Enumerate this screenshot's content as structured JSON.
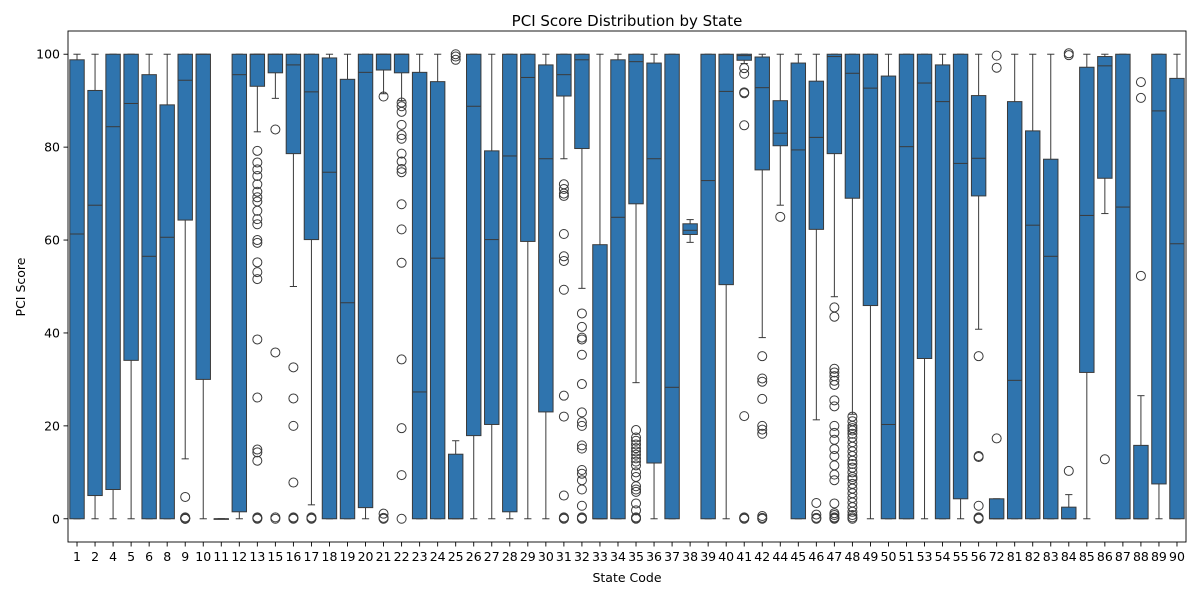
{
  "chart_data": {
    "type": "box",
    "title": "PCI Score Distribution by State",
    "xlabel": "State Code",
    "ylabel": "PCI Score",
    "ylim": [
      -5,
      105
    ],
    "yticks": [
      0,
      20,
      40,
      60,
      80,
      100
    ],
    "grid": false,
    "color": "#2f74ae",
    "categories": [
      "1",
      "2",
      "4",
      "5",
      "6",
      "8",
      "9",
      "10",
      "11",
      "12",
      "13",
      "15",
      "16",
      "17",
      "18",
      "19",
      "20",
      "21",
      "22",
      "23",
      "24",
      "25",
      "26",
      "27",
      "28",
      "29",
      "30",
      "31",
      "32",
      "33",
      "34",
      "35",
      "36",
      "37",
      "38",
      "39",
      "40",
      "41",
      "42",
      "44",
      "45",
      "46",
      "47",
      "48",
      "49",
      "50",
      "51",
      "53",
      "54",
      "55",
      "56",
      "72",
      "81",
      "82",
      "83",
      "84",
      "85",
      "86",
      "87",
      "88",
      "89",
      "90"
    ],
    "boxes": [
      {
        "q1": 0,
        "median": 61.3,
        "q3": 98.8,
        "whislo": 0,
        "whishi": 100,
        "fliers": []
      },
      {
        "q1": 5,
        "median": 67.5,
        "q3": 92.2,
        "whislo": 0,
        "whishi": 100,
        "fliers": []
      },
      {
        "q1": 6.3,
        "median": 84.4,
        "q3": 100,
        "whislo": 0,
        "whishi": 100,
        "fliers": []
      },
      {
        "q1": 34.1,
        "median": 89.4,
        "q3": 100,
        "whislo": 0,
        "whishi": 100,
        "fliers": []
      },
      {
        "q1": 0,
        "median": 56.5,
        "q3": 95.6,
        "whislo": 0,
        "whishi": 100,
        "fliers": []
      },
      {
        "q1": 0,
        "median": 60.6,
        "q3": 89.1,
        "whislo": 0,
        "whishi": 100,
        "fliers": []
      },
      {
        "q1": 64.3,
        "median": 94.4,
        "q3": 100,
        "whislo": 12.9,
        "whishi": 100,
        "fliers": [
          4.7,
          0.3,
          0.1,
          0,
          0,
          0
        ]
      },
      {
        "q1": 30,
        "median": 100,
        "q3": 100,
        "whislo": 0,
        "whishi": 100,
        "fliers": []
      },
      {
        "q1": 0,
        "median": 0,
        "q3": 0,
        "whislo": 0,
        "whishi": 0,
        "fliers": []
      },
      {
        "q1": 1.5,
        "median": 95.6,
        "q3": 100,
        "whislo": 0,
        "whishi": 100,
        "fliers": []
      },
      {
        "q1": 93.1,
        "median": 100,
        "q3": 100,
        "whislo": 83.3,
        "whishi": 100,
        "fliers": [
          79.2,
          76.7,
          75.2,
          73.8,
          72,
          70.4,
          69.2,
          68.3,
          66.3,
          64.5,
          63.4,
          60,
          59.4,
          55.2,
          53.1,
          51.6,
          38.6,
          26.1,
          14.9,
          14.3,
          12.5,
          0.3,
          0.1,
          0
        ]
      },
      {
        "q1": 96,
        "median": 100,
        "q3": 100,
        "whislo": 90.5,
        "whishi": 100,
        "fliers": [
          83.8,
          35.8,
          0.3,
          0
        ]
      },
      {
        "q1": 78.6,
        "median": 97.7,
        "q3": 100,
        "whislo": 50,
        "whishi": 100,
        "fliers": [
          32.6,
          25.9,
          20,
          7.8,
          0.3,
          0.1,
          0
        ]
      },
      {
        "q1": 60.1,
        "median": 91.9,
        "q3": 100,
        "whislo": 3,
        "whishi": 100,
        "fliers": [
          0.3,
          0.1,
          0
        ]
      },
      {
        "q1": 0,
        "median": 74.6,
        "q3": 99.2,
        "whislo": 0,
        "whishi": 100,
        "fliers": []
      },
      {
        "q1": 0,
        "median": 46.5,
        "q3": 94.6,
        "whislo": 0,
        "whishi": 100,
        "fliers": []
      },
      {
        "q1": 2.4,
        "median": 96.1,
        "q3": 100,
        "whislo": 0,
        "whishi": 100,
        "fliers": []
      },
      {
        "q1": 96.6,
        "median": 100,
        "q3": 100,
        "whislo": 91.5,
        "whishi": 100,
        "fliers": [
          90.9,
          1.1,
          0.2,
          0
        ]
      },
      {
        "q1": 96,
        "median": 100,
        "q3": 100,
        "whislo": 90,
        "whishi": 100,
        "fliers": [
          89.6,
          88.8,
          87.6,
          84.8,
          82.6,
          81.8,
          78.6,
          76.9,
          75.3,
          74.6,
          67.7,
          62.3,
          55.1,
          34.3,
          19.5,
          9.4,
          0
        ]
      },
      {
        "q1": 0,
        "median": 27.3,
        "q3": 96.1,
        "whislo": 0,
        "whishi": 100,
        "fliers": []
      },
      {
        "q1": 0,
        "median": 56.1,
        "q3": 94.1,
        "whislo": 0,
        "whishi": 100,
        "fliers": []
      },
      {
        "q1": 0,
        "median": 0,
        "q3": 13.9,
        "whislo": 0,
        "whishi": 16.8,
        "fliers": [
          100,
          99.5,
          98.8
        ]
      },
      {
        "q1": 17.9,
        "median": 88.8,
        "q3": 100,
        "whislo": 0,
        "whishi": 100,
        "fliers": []
      },
      {
        "q1": 20.3,
        "median": 60.1,
        "q3": 79.2,
        "whislo": 0,
        "whishi": 100,
        "fliers": []
      },
      {
        "q1": 1.5,
        "median": 78.1,
        "q3": 100,
        "whislo": 0,
        "whishi": 100,
        "fliers": []
      },
      {
        "q1": 59.7,
        "median": 95,
        "q3": 100,
        "whislo": 0,
        "whishi": 100,
        "fliers": []
      },
      {
        "q1": 23,
        "median": 77.5,
        "q3": 97.7,
        "whislo": 0,
        "whishi": 100,
        "fliers": []
      },
      {
        "q1": 91,
        "median": 95.6,
        "q3": 100,
        "whislo": 77.5,
        "whishi": 100,
        "fliers": [
          72,
          71,
          70,
          69.5,
          61.3,
          56.5,
          55.5,
          49.3,
          26.5,
          22,
          5,
          0.3,
          0.1,
          0
        ]
      },
      {
        "q1": 79.7,
        "median": 98.8,
        "q3": 100,
        "whislo": 49.6,
        "whishi": 100,
        "fliers": [
          44.2,
          41.3,
          39,
          38.6,
          35.3,
          29,
          22.9,
          20.8,
          20,
          15.8,
          15.1,
          10.5,
          9.7,
          8.3,
          6.3,
          2.8,
          0.3,
          0.1,
          0
        ]
      },
      {
        "q1": 0,
        "median": 0,
        "q3": 59,
        "whislo": 0,
        "whishi": 100,
        "fliers": []
      },
      {
        "q1": 0,
        "median": 64.9,
        "q3": 98.8,
        "whislo": 0,
        "whishi": 100,
        "fliers": []
      },
      {
        "q1": 67.8,
        "median": 98.4,
        "q3": 100,
        "whislo": 29.3,
        "whishi": 100,
        "fliers": [
          19.1,
          17.5,
          16.8,
          16,
          15.2,
          14.5,
          13.8,
          13,
          12.3,
          11.5,
          10,
          9,
          7,
          6.3,
          5.8,
          3.3,
          1.8,
          0.3,
          0.1,
          0
        ]
      },
      {
        "q1": 12,
        "median": 77.5,
        "q3": 98.1,
        "whislo": 0,
        "whishi": 100,
        "fliers": []
      },
      {
        "q1": 0,
        "median": 28.3,
        "q3": 100,
        "whislo": 0,
        "whishi": 100,
        "fliers": []
      },
      {
        "q1": 61.2,
        "median": 62.1,
        "q3": 63.5,
        "whislo": 59.5,
        "whishi": 64.4,
        "fliers": []
      },
      {
        "q1": 0,
        "median": 72.8,
        "q3": 100,
        "whislo": 0,
        "whishi": 100,
        "fliers": []
      },
      {
        "q1": 50.4,
        "median": 92,
        "q3": 100,
        "whislo": 0,
        "whishi": 100,
        "fliers": []
      },
      {
        "q1": 98.7,
        "median": 99.7,
        "q3": 100,
        "whislo": 98,
        "whishi": 100,
        "fliers": [
          97,
          95.8,
          91.8,
          91.6,
          84.7,
          22.1,
          0.3,
          0.1,
          0
        ]
      },
      {
        "q1": 75.1,
        "median": 92.8,
        "q3": 99.4,
        "whislo": 39,
        "whishi": 100,
        "fliers": [
          35,
          30.2,
          29.5,
          25.8,
          20,
          19.2,
          18.3,
          0.6,
          0.2,
          0
        ]
      },
      {
        "q1": 80.3,
        "median": 83,
        "q3": 90,
        "whislo": 67.5,
        "whishi": 100,
        "fliers": [
          65
        ]
      },
      {
        "q1": 0,
        "median": 79.4,
        "q3": 98.1,
        "whislo": 0,
        "whishi": 100,
        "fliers": []
      },
      {
        "q1": 62.3,
        "median": 82.1,
        "q3": 94.2,
        "whislo": 21.3,
        "whishi": 100,
        "fliers": [
          3.4,
          0.9,
          0.2,
          0
        ]
      },
      {
        "q1": 78.6,
        "median": 99.5,
        "q3": 100,
        "whislo": 47.8,
        "whishi": 100,
        "fliers": [
          45.5,
          43.5,
          32.3,
          31.5,
          30.7,
          29.7,
          28.8,
          25.5,
          24.2,
          20,
          18.5,
          17,
          15,
          13.5,
          11.5,
          9.5,
          8.3,
          3.3,
          1.2,
          0.8,
          0.3,
          0.1,
          0
        ]
      },
      {
        "q1": 69,
        "median": 95.9,
        "q3": 100,
        "whislo": 22.5,
        "whishi": 100,
        "fliers": [
          22,
          21,
          20,
          19.5,
          19,
          18.3,
          17.5,
          16.5,
          15.5,
          14.5,
          13.5,
          12.5,
          11.8,
          11,
          10,
          9,
          8.5,
          7.5,
          6.5,
          5.5,
          4.5,
          3.5,
          2.5,
          1.5,
          0.8,
          0.3,
          0
        ]
      },
      {
        "q1": 45.9,
        "median": 92.7,
        "q3": 100,
        "whislo": 0,
        "whishi": 100,
        "fliers": []
      },
      {
        "q1": 0,
        "median": 20.3,
        "q3": 95.3,
        "whislo": 0,
        "whishi": 100,
        "fliers": []
      },
      {
        "q1": 0,
        "median": 80.1,
        "q3": 100,
        "whislo": 0,
        "whishi": 100,
        "fliers": []
      },
      {
        "q1": 34.5,
        "median": 93.8,
        "q3": 100,
        "whislo": 0,
        "whishi": 100,
        "fliers": []
      },
      {
        "q1": 0,
        "median": 89.8,
        "q3": 97.7,
        "whislo": 0,
        "whishi": 100,
        "fliers": []
      },
      {
        "q1": 4.3,
        "median": 76.5,
        "q3": 100,
        "whislo": 0,
        "whishi": 100,
        "fliers": []
      },
      {
        "q1": 69.5,
        "median": 77.6,
        "q3": 91.1,
        "whislo": 40.8,
        "whishi": 100,
        "fliers": [
          35,
          13.5,
          13.3,
          2.8,
          0.3,
          0.1,
          0
        ]
      },
      {
        "q1": 0,
        "median": 0,
        "q3": 4.3,
        "whislo": 0,
        "whishi": 4.3,
        "fliers": [
          99.7,
          97.1,
          17.3
        ]
      },
      {
        "q1": 0,
        "median": 29.8,
        "q3": 89.8,
        "whislo": 0,
        "whishi": 100,
        "fliers": []
      },
      {
        "q1": 0,
        "median": 63.2,
        "q3": 83.5,
        "whislo": 0,
        "whishi": 100,
        "fliers": []
      },
      {
        "q1": 0,
        "median": 56.5,
        "q3": 77.4,
        "whislo": 0,
        "whishi": 100,
        "fliers": []
      },
      {
        "q1": 0,
        "median": 0,
        "q3": 2.5,
        "whislo": 0,
        "whishi": 5.2,
        "fliers": [
          100.2,
          99.8,
          10.3
        ]
      },
      {
        "q1": 31.5,
        "median": 65.3,
        "q3": 97.2,
        "whislo": 0,
        "whishi": 100,
        "fliers": []
      },
      {
        "q1": 73.3,
        "median": 97.5,
        "q3": 99.5,
        "whislo": 65.7,
        "whishi": 100,
        "fliers": [
          12.8
        ]
      },
      {
        "q1": 0,
        "median": 67.1,
        "q3": 100,
        "whislo": 0,
        "whishi": 100,
        "fliers": []
      },
      {
        "q1": 0,
        "median": 0,
        "q3": 15.8,
        "whislo": 0,
        "whishi": 26.5,
        "fliers": [
          94,
          90.6,
          52.3
        ]
      },
      {
        "q1": 7.5,
        "median": 87.8,
        "q3": 100,
        "whislo": 0,
        "whishi": 100,
        "fliers": []
      },
      {
        "q1": 0,
        "median": 59.2,
        "q3": 94.8,
        "whislo": 0,
        "whishi": 100,
        "fliers": []
      }
    ]
  }
}
